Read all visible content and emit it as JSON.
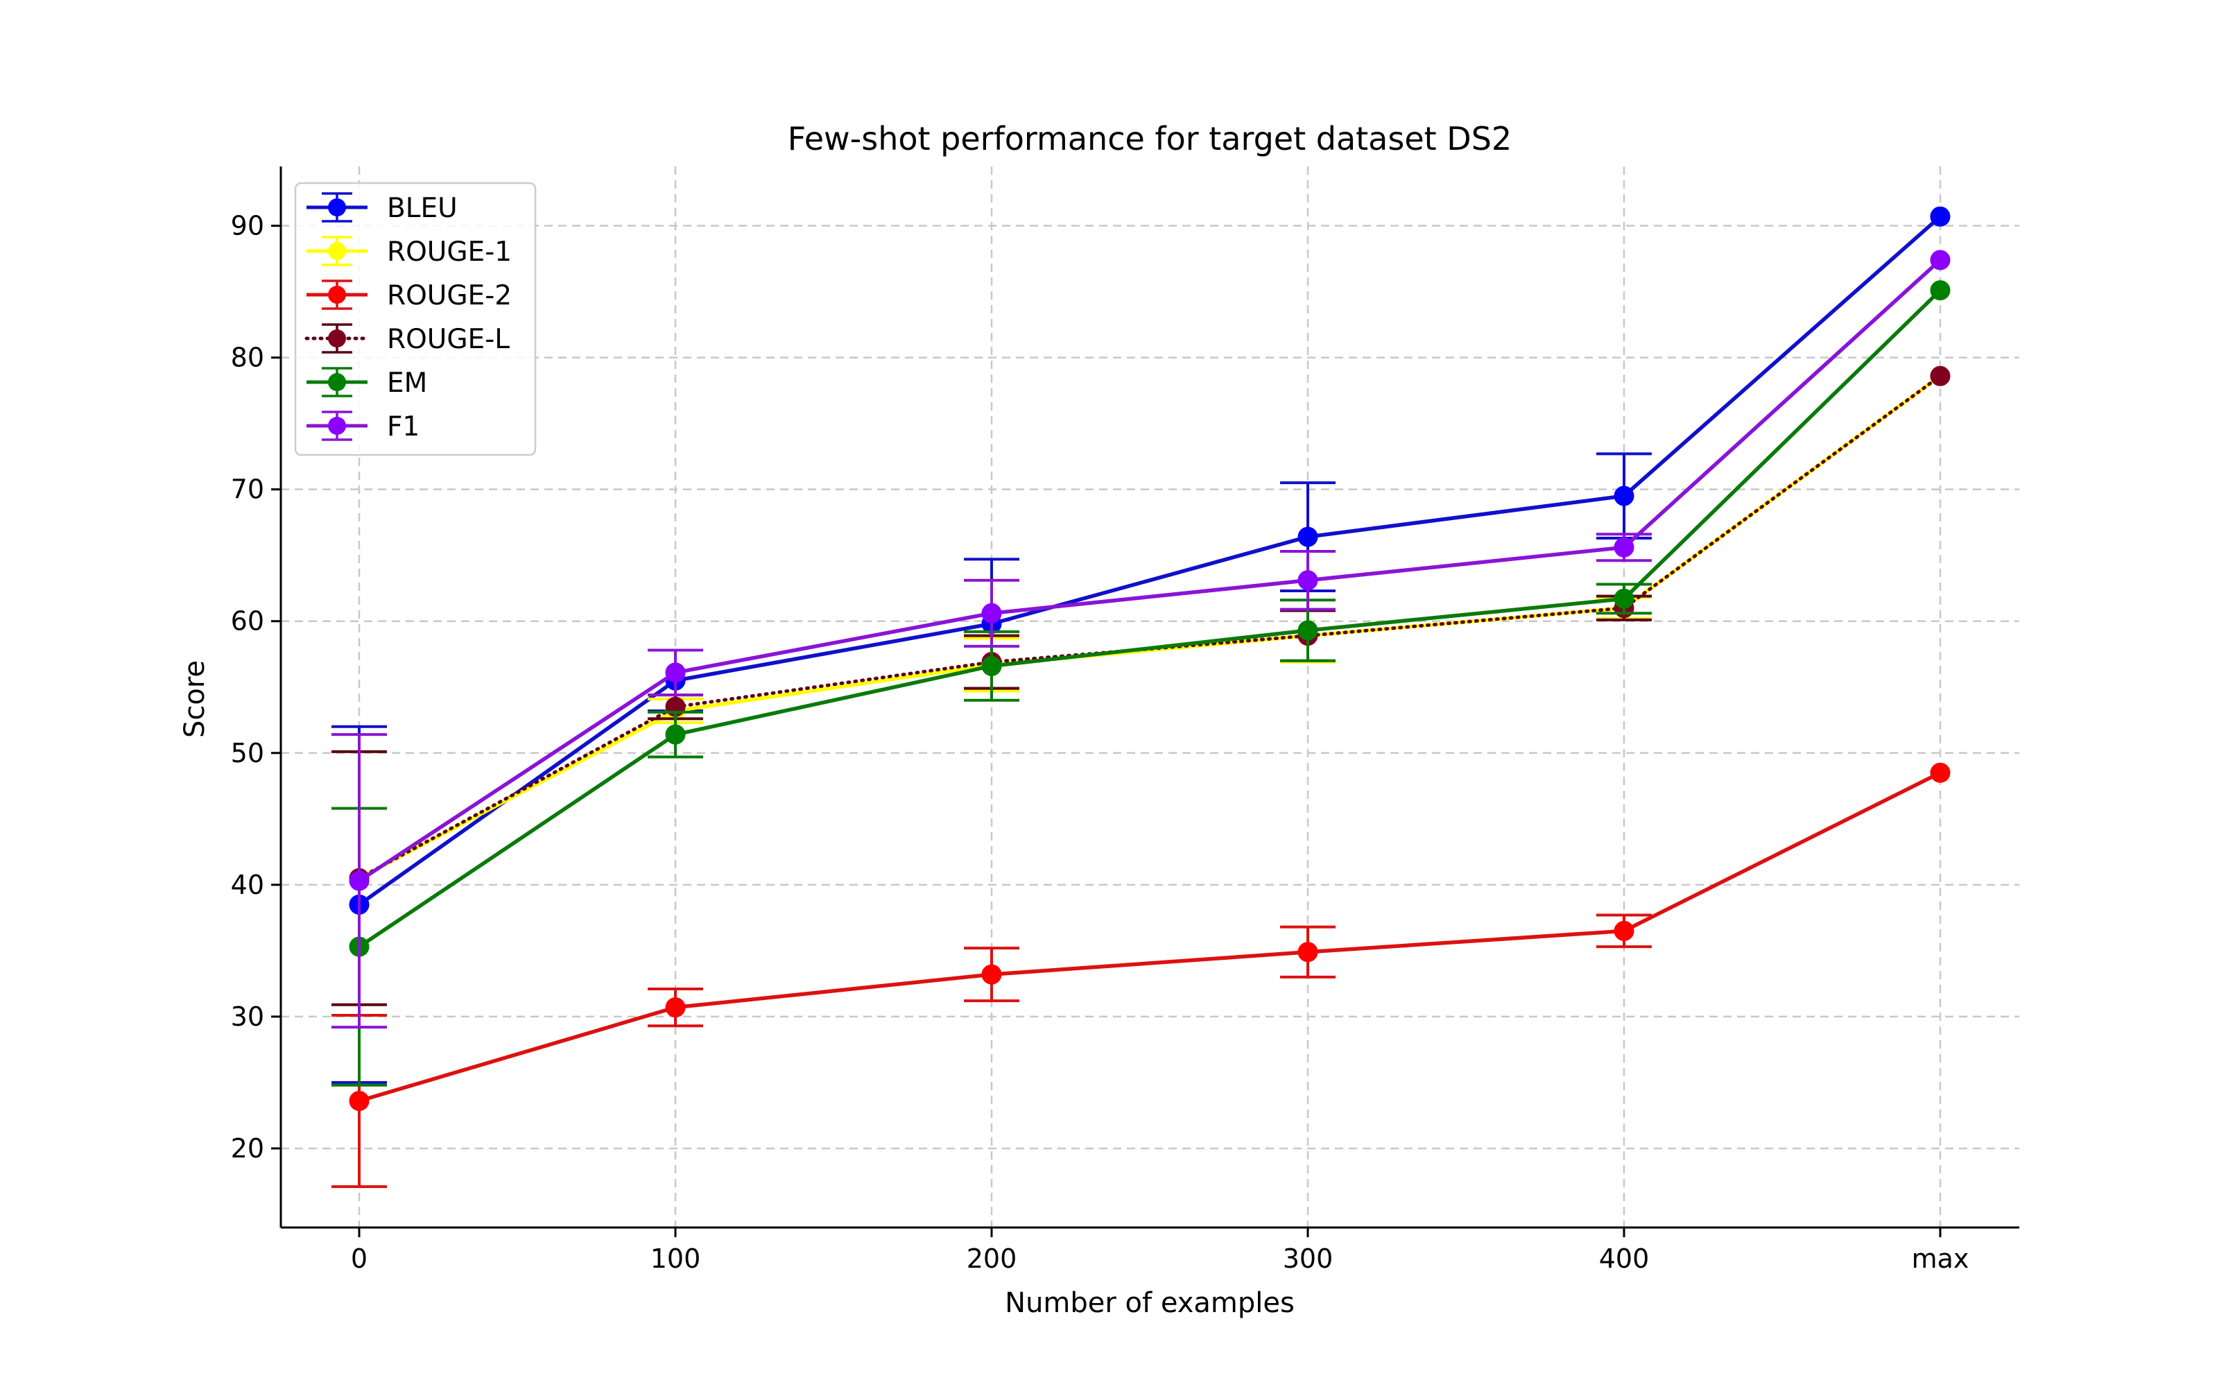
{
  "chart_data": {
    "type": "line",
    "title": "Few-shot performance for target dataset DS2",
    "xlabel": "Number of examples",
    "ylabel": "Score",
    "categories": [
      "0",
      "100",
      "200",
      "300",
      "400",
      "max"
    ],
    "ylim": [
      14,
      94.5
    ],
    "yticks": [
      20,
      30,
      40,
      50,
      60,
      70,
      80,
      90
    ],
    "grid": true,
    "legend_position": "top-left",
    "series": [
      {
        "name": "BLEU",
        "color": "#0000ff",
        "line_color": "#1010cc",
        "style": "solid",
        "values": [
          38.5,
          55.5,
          59.8,
          66.4,
          69.5,
          90.7
        ],
        "errors": [
          13.5,
          2.3,
          4.9,
          4.1,
          3.2,
          0
        ]
      },
      {
        "name": "ROUGE-1",
        "color": "#ffff00",
        "line_color": "#ffff00",
        "style": "solid",
        "values": [
          40.5,
          53.2,
          56.7,
          58.9,
          61.0,
          78.6
        ],
        "errors": [
          9.6,
          0.9,
          2.0,
          2.0,
          0.8,
          0
        ]
      },
      {
        "name": "ROUGE-2",
        "color": "#ff0000",
        "line_color": "#dd1111",
        "style": "solid",
        "values": [
          23.6,
          30.7,
          33.2,
          34.9,
          36.5,
          48.5
        ],
        "errors": [
          6.5,
          1.4,
          2.0,
          1.9,
          1.2,
          0
        ]
      },
      {
        "name": "ROUGE-L",
        "color": "#800020",
        "line_color": "#5a0015",
        "style": "dotted",
        "values": [
          40.5,
          53.5,
          56.9,
          58.9,
          61.0,
          78.6
        ],
        "errors": [
          9.6,
          0.9,
          2.0,
          1.9,
          0.9,
          0
        ]
      },
      {
        "name": "EM",
        "color": "#008000",
        "line_color": "#0a7a0a",
        "style": "solid",
        "values": [
          35.3,
          51.4,
          56.6,
          59.3,
          61.7,
          85.1
        ],
        "errors": [
          10.5,
          1.7,
          2.6,
          2.3,
          1.1,
          0
        ]
      },
      {
        "name": "F1",
        "color": "#8b00ff",
        "line_color": "#8a14d6",
        "style": "solid",
        "values": [
          40.3,
          56.1,
          60.6,
          63.1,
          65.6,
          87.4
        ],
        "errors": [
          11.1,
          1.7,
          2.5,
          2.2,
          1.0,
          0
        ]
      }
    ]
  }
}
